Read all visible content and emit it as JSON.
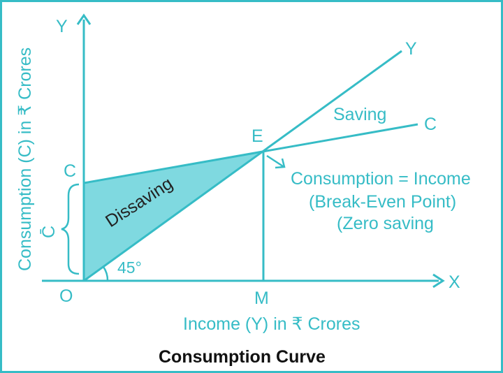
{
  "colors": {
    "line": "#36bcc6",
    "text_teal": "#36bcc6",
    "text_dark": "#222222",
    "fill": "#7fd9e0",
    "frame": "#36bcc6"
  },
  "labels": {
    "y_axis_letter": "Y",
    "x_axis_letter": "X",
    "origin": "O",
    "point_m": "M",
    "point_e": "E",
    "point_c_intercept": "C",
    "line_c_end": "C",
    "line_y_end": "Y",
    "bracket_label": "C̄",
    "angle": "45°",
    "dissaving": "Dissaving",
    "saving": "Saving",
    "annotation_line1": "Consumption = Income",
    "annotation_line2": "(Break-Even Point)",
    "annotation_line3": "(Zero saving",
    "x_axis_title": "Income (Y) in ₹ Crores",
    "y_axis_title": "Consumption (C) in ₹ Crores",
    "caption": "Consumption Curve"
  }
}
